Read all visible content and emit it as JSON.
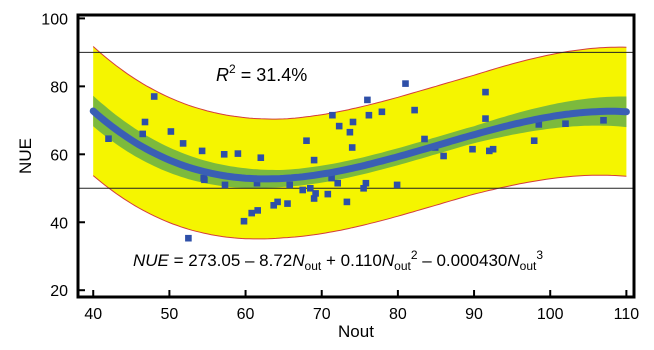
{
  "chart_data": {
    "type": "scatter",
    "title": "",
    "xlabel": "Nout",
    "ylabel": "NUE",
    "xlim": [
      38,
      111
    ],
    "ylim": [
      18,
      101
    ],
    "x_ticks": [
      40,
      50,
      60,
      70,
      80,
      90,
      100,
      110
    ],
    "y_ticks": [
      20,
      40,
      60,
      80,
      100
    ],
    "grid": false,
    "reference_lines": [
      50,
      90
    ],
    "annotations": {
      "r2_symbol": "R",
      "r2_exp": "2",
      "r2_value": " = 31.4%",
      "eq_lhs": "NUE",
      "eq_part1": " = 273.05 – 8.72",
      "eq_n": "N",
      "eq_sub": "out",
      "eq_part2": " + 0.110",
      "eq_sup2": "2",
      "eq_part3": " – 0.000430",
      "eq_sup3": "3"
    },
    "fit": {
      "coefficients": [
        273.05,
        -8.72,
        0.11,
        -0.00043
      ],
      "x_range": [
        40,
        110
      ]
    },
    "confidence_band_halfwidth": [
      [
        40,
        4.5
      ],
      [
        65,
        2.5
      ],
      [
        90,
        2.5
      ],
      [
        110,
        4.5
      ]
    ],
    "prediction_band_halfwidth": [
      [
        40,
        19
      ],
      [
        65,
        17.5
      ],
      [
        90,
        17.5
      ],
      [
        110,
        19
      ]
    ],
    "points": [
      {
        "x": 42.0,
        "y": 64.6
      },
      {
        "x": 46.5,
        "y": 66.0
      },
      {
        "x": 46.8,
        "y": 69.5
      },
      {
        "x": 48.0,
        "y": 77.0
      },
      {
        "x": 50.2,
        "y": 66.7
      },
      {
        "x": 51.8,
        "y": 63.2
      },
      {
        "x": 52.5,
        "y": 35.3
      },
      {
        "x": 54.3,
        "y": 61.0
      },
      {
        "x": 54.5,
        "y": 53.0
      },
      {
        "x": 54.6,
        "y": 52.5
      },
      {
        "x": 57.2,
        "y": 60.0
      },
      {
        "x": 57.3,
        "y": 51.0
      },
      {
        "x": 59.0,
        "y": 60.2
      },
      {
        "x": 59.8,
        "y": 40.3
      },
      {
        "x": 60.8,
        "y": 42.7
      },
      {
        "x": 61.6,
        "y": 43.5
      },
      {
        "x": 61.5,
        "y": 51.5
      },
      {
        "x": 62.0,
        "y": 59.0
      },
      {
        "x": 63.7,
        "y": 45.0
      },
      {
        "x": 64.2,
        "y": 46.0
      },
      {
        "x": 65.5,
        "y": 45.5
      },
      {
        "x": 65.8,
        "y": 51.0
      },
      {
        "x": 67.5,
        "y": 49.5
      },
      {
        "x": 68.0,
        "y": 64.0
      },
      {
        "x": 68.5,
        "y": 50.0
      },
      {
        "x": 69.0,
        "y": 47.0
      },
      {
        "x": 69.2,
        "y": 48.5
      },
      {
        "x": 69.0,
        "y": 58.3
      },
      {
        "x": 70.8,
        "y": 48.3
      },
      {
        "x": 71.3,
        "y": 53.0
      },
      {
        "x": 71.4,
        "y": 71.5
      },
      {
        "x": 72.1,
        "y": 51.5
      },
      {
        "x": 72.3,
        "y": 68.3
      },
      {
        "x": 73.3,
        "y": 46.0
      },
      {
        "x": 73.7,
        "y": 66.5
      },
      {
        "x": 74.0,
        "y": 62.0
      },
      {
        "x": 74.1,
        "y": 69.5
      },
      {
        "x": 75.5,
        "y": 50.0
      },
      {
        "x": 75.8,
        "y": 51.5
      },
      {
        "x": 76.0,
        "y": 76.0
      },
      {
        "x": 76.2,
        "y": 71.5
      },
      {
        "x": 77.9,
        "y": 72.5
      },
      {
        "x": 79.9,
        "y": 51.0
      },
      {
        "x": 81.0,
        "y": 80.8
      },
      {
        "x": 82.2,
        "y": 73.0
      },
      {
        "x": 83.5,
        "y": 64.5
      },
      {
        "x": 84.9,
        "y": 62.0
      },
      {
        "x": 86.0,
        "y": 59.5
      },
      {
        "x": 89.8,
        "y": 61.5
      },
      {
        "x": 91.5,
        "y": 78.3
      },
      {
        "x": 91.5,
        "y": 70.5
      },
      {
        "x": 92.0,
        "y": 61.0
      },
      {
        "x": 92.5,
        "y": 61.5
      },
      {
        "x": 97.9,
        "y": 64.0
      },
      {
        "x": 98.5,
        "y": 68.8
      },
      {
        "x": 102.0,
        "y": 69.0
      },
      {
        "x": 107.0,
        "y": 70.0
      }
    ],
    "colors": {
      "prediction_band": "#f5f500",
      "confidence_band": "#7cba3d",
      "band_edge": "#d43c3c",
      "fit_line": "#3a5fb5",
      "points": "#2e4fa8",
      "reference_line": "#222222"
    }
  }
}
